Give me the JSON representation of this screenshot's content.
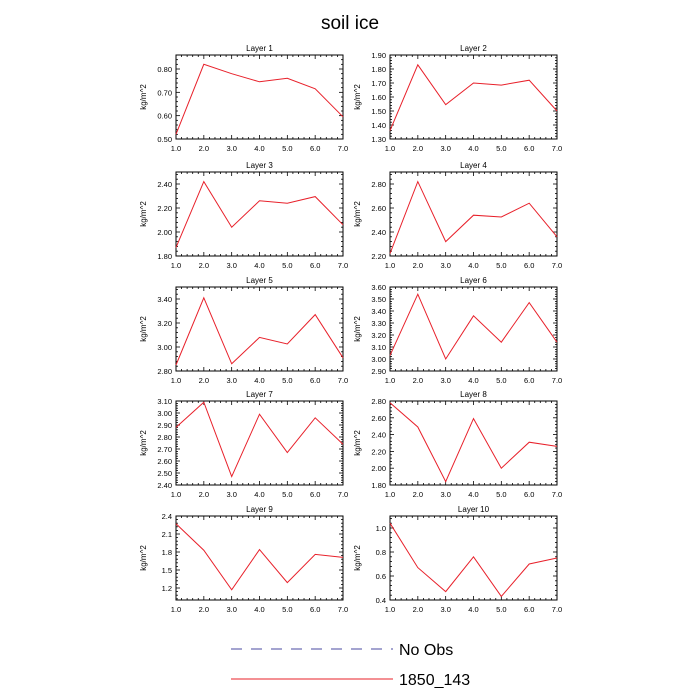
{
  "title": "soil ice",
  "ylabel": "kg/m^2",
  "legend": {
    "items": [
      {
        "label": "No Obs",
        "color": "#4a4aa0",
        "style": "dashed"
      },
      {
        "label": "1850_143",
        "color": "#e8202a",
        "style": "solid"
      }
    ]
  },
  "chart_data": [
    {
      "type": "line",
      "title": "Layer 1",
      "xlim": [
        1.0,
        7.0
      ],
      "ylim": [
        0.5,
        0.86
      ],
      "xticks": [
        "1.0",
        "2.0",
        "3.0",
        "4.0",
        "5.0",
        "6.0",
        "7.0"
      ],
      "yticks": [
        0.5,
        0.6,
        0.7,
        0.8
      ],
      "ytick_labels": [
        "0.50",
        "0.60",
        "0.70",
        "0.80"
      ],
      "series": [
        {
          "x": [
            1,
            2,
            3,
            4,
            5,
            6,
            7
          ],
          "values": [
            0.52,
            0.82,
            0.78,
            0.745,
            0.76,
            0.715,
            0.595
          ]
        }
      ]
    },
    {
      "type": "line",
      "title": "Layer 2",
      "xlim": [
        1.0,
        7.0
      ],
      "ylim": [
        1.3,
        1.9
      ],
      "xticks": [
        "1.0",
        "2.0",
        "3.0",
        "4.0",
        "5.0",
        "6.0",
        "7.0"
      ],
      "yticks": [
        1.3,
        1.4,
        1.5,
        1.6,
        1.7,
        1.8,
        1.9
      ],
      "ytick_labels": [
        "1.30",
        "1.40",
        "1.50",
        "1.60",
        "1.70",
        "1.80",
        "1.90"
      ],
      "series": [
        {
          "x": [
            1,
            2,
            3,
            4,
            5,
            6,
            7
          ],
          "values": [
            1.36,
            1.83,
            1.545,
            1.7,
            1.685,
            1.72,
            1.5
          ]
        }
      ]
    },
    {
      "type": "line",
      "title": "Layer 3",
      "xlim": [
        1.0,
        7.0
      ],
      "ylim": [
        1.8,
        2.5
      ],
      "xticks": [
        "1.0",
        "2.0",
        "3.0",
        "4.0",
        "5.0",
        "6.0",
        "7.0"
      ],
      "yticks": [
        1.8,
        2.0,
        2.2,
        2.4
      ],
      "ytick_labels": [
        "1.80",
        "2.00",
        "2.20",
        "2.40"
      ],
      "series": [
        {
          "x": [
            1,
            2,
            3,
            4,
            5,
            6,
            7
          ],
          "values": [
            1.87,
            2.42,
            2.04,
            2.26,
            2.24,
            2.295,
            2.06
          ]
        }
      ]
    },
    {
      "type": "line",
      "title": "Layer 4",
      "xlim": [
        1.0,
        7.0
      ],
      "ylim": [
        2.2,
        2.9
      ],
      "xticks": [
        "1.0",
        "2.0",
        "3.0",
        "4.0",
        "5.0",
        "6.0",
        "7.0"
      ],
      "yticks": [
        2.2,
        2.4,
        2.6,
        2.8
      ],
      "ytick_labels": [
        "2.20",
        "2.40",
        "2.60",
        "2.80"
      ],
      "series": [
        {
          "x": [
            1,
            2,
            3,
            4,
            5,
            6,
            7
          ],
          "values": [
            2.22,
            2.82,
            2.32,
            2.54,
            2.525,
            2.64,
            2.36
          ]
        }
      ]
    },
    {
      "type": "line",
      "title": "Layer 5",
      "xlim": [
        1.0,
        7.0
      ],
      "ylim": [
        2.8,
        3.5
      ],
      "xticks": [
        "1.0",
        "2.0",
        "3.0",
        "4.0",
        "5.0",
        "6.0",
        "7.0"
      ],
      "yticks": [
        2.8,
        3.0,
        3.2,
        3.4
      ],
      "ytick_labels": [
        "2.80",
        "3.00",
        "3.20",
        "3.40"
      ],
      "series": [
        {
          "x": [
            1,
            2,
            3,
            4,
            5,
            6,
            7
          ],
          "values": [
            2.85,
            3.41,
            2.86,
            3.08,
            3.025,
            3.27,
            2.91
          ]
        }
      ]
    },
    {
      "type": "line",
      "title": "Layer 6",
      "xlim": [
        1.0,
        7.0
      ],
      "ylim": [
        2.9,
        3.6
      ],
      "xticks": [
        "1.0",
        "2.0",
        "3.0",
        "4.0",
        "5.0",
        "6.0",
        "7.0"
      ],
      "yticks": [
        2.9,
        3.0,
        3.1,
        3.2,
        3.3,
        3.4,
        3.5,
        3.6
      ],
      "ytick_labels": [
        "2.90",
        "3.00",
        "3.10",
        "3.20",
        "3.30",
        "3.40",
        "3.50",
        "3.60"
      ],
      "series": [
        {
          "x": [
            1,
            2,
            3,
            4,
            5,
            6,
            7
          ],
          "values": [
            3.03,
            3.54,
            3.0,
            3.36,
            3.14,
            3.47,
            3.14
          ]
        }
      ]
    },
    {
      "type": "line",
      "title": "Layer 7",
      "xlim": [
        1.0,
        7.0
      ],
      "ylim": [
        2.4,
        3.1
      ],
      "xticks": [
        "1.0",
        "2.0",
        "3.0",
        "4.0",
        "5.0",
        "6.0",
        "7.0"
      ],
      "yticks": [
        2.4,
        2.5,
        2.6,
        2.7,
        2.8,
        2.9,
        3.0,
        3.1
      ],
      "ytick_labels": [
        "2.40",
        "2.50",
        "2.60",
        "2.70",
        "2.80",
        "2.90",
        "3.00",
        "3.10"
      ],
      "series": [
        {
          "x": [
            1,
            2,
            3,
            4,
            5,
            6,
            7
          ],
          "values": [
            2.88,
            3.09,
            2.47,
            2.99,
            2.67,
            2.96,
            2.74
          ]
        }
      ]
    },
    {
      "type": "line",
      "title": "Layer 8",
      "xlim": [
        1.0,
        7.0
      ],
      "ylim": [
        1.8,
        2.8
      ],
      "xticks": [
        "1.0",
        "2.0",
        "3.0",
        "4.0",
        "5.0",
        "6.0",
        "7.0"
      ],
      "yticks": [
        1.8,
        2.0,
        2.2,
        2.4,
        2.6,
        2.8
      ],
      "ytick_labels": [
        "1.80",
        "2.00",
        "2.20",
        "2.40",
        "2.60",
        "2.80"
      ],
      "series": [
        {
          "x": [
            1,
            2,
            3,
            4,
            5,
            6,
            7
          ],
          "values": [
            2.78,
            2.49,
            1.84,
            2.59,
            2.0,
            2.31,
            2.26
          ]
        }
      ]
    },
    {
      "type": "line",
      "title": "Layer 9",
      "xlim": [
        1.0,
        7.0
      ],
      "ylim": [
        1.0,
        2.4
      ],
      "xticks": [
        "1.0",
        "2.0",
        "3.0",
        "4.0",
        "5.0",
        "6.0",
        "7.0"
      ],
      "yticks": [
        1.2,
        1.5,
        1.8,
        2.1,
        2.4
      ],
      "ytick_labels": [
        "1.2",
        "1.5",
        "1.8",
        "2.1",
        "2.4"
      ],
      "series": [
        {
          "x": [
            1,
            2,
            3,
            4,
            5,
            6,
            7
          ],
          "values": [
            2.27,
            1.83,
            1.17,
            1.84,
            1.29,
            1.76,
            1.71
          ]
        }
      ]
    },
    {
      "type": "line",
      "title": "Layer 10",
      "xlim": [
        1.0,
        7.0
      ],
      "ylim": [
        0.4,
        1.1
      ],
      "xticks": [
        "1.0",
        "2.0",
        "3.0",
        "4.0",
        "5.0",
        "6.0",
        "7.0"
      ],
      "yticks": [
        0.4,
        0.6,
        0.8,
        1.0
      ],
      "ytick_labels": [
        "0.4",
        "0.6",
        "0.8",
        "1.0"
      ],
      "series": [
        {
          "x": [
            1,
            2,
            3,
            4,
            5,
            6,
            7
          ],
          "values": [
            1.04,
            0.67,
            0.47,
            0.76,
            0.43,
            0.7,
            0.75
          ]
        }
      ]
    }
  ]
}
